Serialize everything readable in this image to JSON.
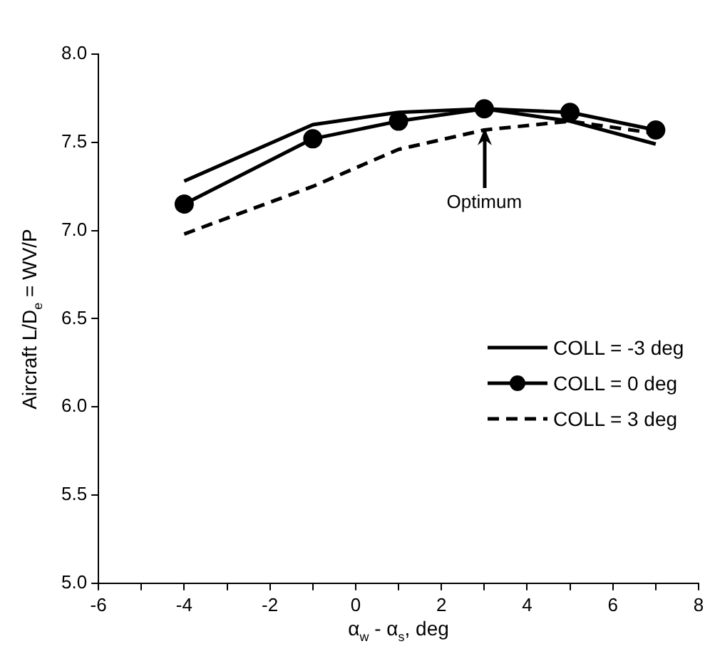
{
  "chart_data": {
    "type": "line",
    "xlabel": "α$_{w}$ - α$_{s}$, deg",
    "ylabel": "Aircraft L/D$_{e}$ = WV/P",
    "x": [
      -4,
      -1,
      1,
      3,
      5,
      7
    ],
    "series": [
      {
        "name": "COLL = -3 deg",
        "color": "#000000",
        "values": [
          7.28,
          7.6,
          7.67,
          7.69,
          7.62,
          7.49
        ],
        "marker": "none",
        "line_style": "solid"
      },
      {
        "name": "COLL = 0 deg",
        "color": "#000000",
        "values": [
          7.15,
          7.52,
          7.62,
          7.69,
          7.67,
          7.57
        ],
        "marker": "circle",
        "line_style": "solid"
      },
      {
        "name": "COLL = 3 deg",
        "color": "#000000",
        "values": [
          6.98,
          7.25,
          7.46,
          7.57,
          7.62,
          7.55
        ],
        "marker": "none",
        "line_style": "dashed"
      }
    ],
    "xlim": [
      -6,
      8
    ],
    "xticks": [
      -6,
      {
        "value": -5,
        "label": null
      },
      -4,
      {
        "value": -3,
        "label": null
      },
      -2,
      {
        "value": -1,
        "label": null
      },
      0,
      {
        "value": 1,
        "label": null
      },
      2,
      {
        "value": 3,
        "label": null
      },
      4,
      {
        "value": 5,
        "label": null
      },
      6,
      {
        "value": 7,
        "label": null
      },
      8
    ],
    "ylim": [
      5,
      8
    ],
    "yticks": [
      {
        "value": 5,
        "label": "5.0"
      },
      {
        "value": 5.5,
        "label": "5.5"
      },
      {
        "value": 6,
        "label": "6.0"
      },
      {
        "value": 6.5,
        "label": "6.5"
      },
      {
        "value": 7,
        "label": "7.0"
      },
      {
        "value": 7.5,
        "label": "7.5"
      },
      {
        "value": 8,
        "label": "8.0"
      }
    ],
    "annotations": [
      {
        "text": "Optimum",
        "x": 3,
        "y": 7.58
      }
    ],
    "grid": false,
    "legend": "right"
  }
}
